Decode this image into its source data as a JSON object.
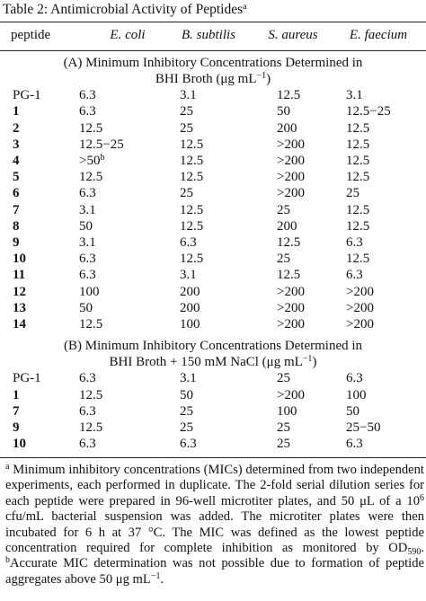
{
  "table": {
    "title": "Table 2:  Antimicrobial Activity of Peptides",
    "title_mark": "a",
    "headers": [
      "peptide",
      "E. coli",
      "B. subtilis",
      "S. aureus",
      "E. faecium"
    ],
    "sections": [
      {
        "heading": [
          "(A) Minimum Inhibitory Concentrations Determined in",
          "BHI Broth (μg mL",
          "−1",
          ")"
        ],
        "rows": [
          [
            "PG-1",
            "6.3",
            "3.1",
            "12.5",
            "3.1"
          ],
          [
            "1",
            "6.3",
            "25",
            "50",
            "12.5−25"
          ],
          [
            "2",
            "12.5",
            "25",
            "200",
            "12.5"
          ],
          [
            "3",
            "12.5−25",
            "12.5",
            ">200",
            "12.5"
          ],
          [
            "4",
            [
              ">50",
              "b"
            ],
            "12.5",
            ">200",
            "12.5"
          ],
          [
            "5",
            "12.5",
            "12.5",
            ">200",
            "12.5"
          ],
          [
            "6",
            "6.3",
            "25",
            ">200",
            "25"
          ],
          [
            "7",
            "3.1",
            "12.5",
            "25",
            "12.5"
          ],
          [
            "8",
            "50",
            "12.5",
            "200",
            "12.5"
          ],
          [
            "9",
            "3.1",
            "6.3",
            "12.5",
            "6.3"
          ],
          [
            "10",
            "6.3",
            "12.5",
            "25",
            "12.5"
          ],
          [
            "11",
            "6.3",
            "3.1",
            "12.5",
            "6.3"
          ],
          [
            "12",
            "100",
            "200",
            ">200",
            ">200"
          ],
          [
            "13",
            "50",
            "200",
            ">200",
            ">200"
          ],
          [
            "14",
            "12.5",
            "100",
            ">200",
            ">200"
          ]
        ]
      },
      {
        "heading": [
          "(B) Minimum Inhibitory Concentrations Determined in",
          "BHI Broth + 150 mM NaCl (μg mL",
          "−1",
          ")"
        ],
        "rows": [
          [
            "PG-1",
            "6.3",
            "3.1",
            "25",
            "6.3"
          ],
          [
            "1",
            "12.5",
            "50",
            ">200",
            "100"
          ],
          [
            "7",
            "6.3",
            "25",
            "100",
            "50"
          ],
          [
            "9",
            "12.5",
            "25",
            "25",
            "25−50"
          ],
          [
            "10",
            "6.3",
            "6.3",
            "25",
            "6.3"
          ]
        ]
      }
    ],
    "footnote": [
      "a",
      " Minimum inhibitory concentrations (MICs) determined from two independent experiments, each performed in duplicate. The 2-fold serial dilution series for each peptide were prepared in 96-well microtiter plates, and 50 μL of a 10",
      "6",
      " cfu/mL bacterial suspension was added. The microtiter plates were then incubated for 6 h at 37 °C. The MIC was defined as the lowest peptide concentration required for complete inhibition as monitored by OD",
      "590",
      ". ",
      "b",
      "Accurate MIC determination was not possible due to formation of peptide aggregates above 50 μg mL",
      "−1",
      "."
    ]
  }
}
